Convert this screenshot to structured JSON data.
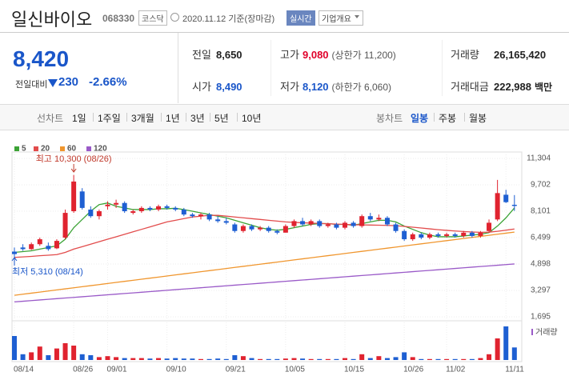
{
  "header": {
    "name": "일신바이오",
    "code": "068330",
    "market": "코스닥",
    "date": "2020.11.12 기준(장마감)",
    "realtime": "실시간",
    "overview": "기업개요"
  },
  "price": {
    "current": "8,420",
    "change_label": "전일대비",
    "change": "230",
    "change_rate": "-2.66%"
  },
  "summary": [
    {
      "label": "전일",
      "value": "8,650"
    },
    {
      "label": "고가",
      "value": "9,080",
      "note": "(상한가 11,200)",
      "color": "#e0002a"
    },
    {
      "label": "거래량",
      "value": "26,165,420"
    },
    {
      "label": "시가",
      "value": "8,490",
      "color": "#1a56c9"
    },
    {
      "label": "저가",
      "value": "8,120",
      "note": "(하한가 6,060)",
      "color": "#1a56c9"
    },
    {
      "label": "거래대금",
      "value": "222,988",
      "unit": "백만"
    }
  ],
  "toolbar": {
    "line_label": "선차트",
    "line_periods": [
      "1일",
      "1주일",
      "3개월",
      "1년",
      "3년",
      "5년",
      "10년"
    ],
    "candle_label": "봉차트",
    "candle_periods": [
      "일봉",
      "주봉",
      "월봉"
    ]
  },
  "chart_data": {
    "type": "candlestick",
    "up_color": "#e0232f",
    "down_color": "#1e5fd2",
    "categories": [
      "08/14",
      null,
      null,
      null,
      null,
      null,
      null,
      "08/26",
      null,
      null,
      null,
      "09/01",
      null,
      null,
      null,
      null,
      null,
      null,
      "09/10",
      null,
      null,
      null,
      null,
      null,
      null,
      "09/21",
      null,
      null,
      null,
      null,
      null,
      null,
      "10/05",
      null,
      null,
      null,
      null,
      null,
      null,
      "10/15",
      null,
      null,
      null,
      null,
      null,
      null,
      "10/26",
      null,
      null,
      null,
      null,
      "11/02",
      null,
      null,
      null,
      null,
      null,
      null,
      "11/11",
      null
    ],
    "open": [
      5650,
      5900,
      5800,
      6100,
      6000,
      5850,
      6500,
      8100,
      9300,
      8200,
      7800,
      8400,
      8500,
      8600,
      8000,
      8100,
      8300,
      8200,
      8400,
      8300,
      8200,
      7900,
      7800,
      7900,
      7600,
      7500,
      7300,
      6900,
      7200,
      7000,
      7100,
      6900,
      6800,
      7200,
      7500,
      7300,
      7500,
      7200,
      7300,
      7100,
      7400,
      7200,
      7800,
      7600,
      7700,
      7300,
      6900,
      6400,
      6700,
      6500,
      6700,
      6600,
      6700,
      6600,
      6800,
      6600,
      6900,
      7600,
      9100,
      8490
    ],
    "high": [
      5900,
      6100,
      6200,
      6500,
      6200,
      6400,
      8200,
      10300,
      9500,
      8400,
      8200,
      8700,
      8800,
      8700,
      8200,
      8400,
      8400,
      8500,
      8500,
      8400,
      8300,
      8000,
      8000,
      8000,
      7800,
      7700,
      7400,
      7300,
      7300,
      7200,
      7200,
      7000,
      7300,
      7600,
      7700,
      7600,
      7600,
      7400,
      7400,
      7500,
      7500,
      7900,
      8000,
      7900,
      7800,
      7400,
      7000,
      6800,
      6800,
      6800,
      6800,
      6800,
      6800,
      6900,
      6900,
      6900,
      7600,
      10000,
      9400,
      9080
    ],
    "low": [
      5310,
      5700,
      5750,
      6000,
      5700,
      5800,
      6400,
      8000,
      8200,
      7700,
      7600,
      8200,
      8300,
      8000,
      7900,
      8000,
      8100,
      8100,
      8200,
      8100,
      7800,
      7700,
      7600,
      7500,
      7400,
      7300,
      6800,
      6800,
      6900,
      6900,
      6800,
      6700,
      6800,
      7100,
      7200,
      7200,
      7100,
      7100,
      7000,
      7000,
      7100,
      7100,
      7500,
      7500,
      7200,
      6800,
      6300,
      6300,
      6400,
      6400,
      6500,
      6500,
      6500,
      6500,
      6500,
      6500,
      6800,
      7500,
      8600,
      8120
    ],
    "close": [
      5500,
      5800,
      6100,
      6400,
      5800,
      6300,
      8000,
      9900,
      8300,
      7800,
      8100,
      8500,
      8600,
      8100,
      8100,
      8300,
      8200,
      8400,
      8300,
      8200,
      7900,
      7800,
      7900,
      7600,
      7500,
      7400,
      6900,
      7200,
      7000,
      7100,
      6900,
      6800,
      7200,
      7500,
      7300,
      7500,
      7200,
      7300,
      7100,
      7400,
      7200,
      7800,
      7600,
      7700,
      7300,
      6900,
      6400,
      6700,
      6500,
      6700,
      6600,
      6700,
      6600,
      6800,
      6600,
      6800,
      7400,
      9200,
      8650,
      8420
    ],
    "series": [
      {
        "name": "5",
        "color": "#3ca336",
        "values": [
          5600,
          5650,
          5700,
          5800,
          5900,
          6000,
          6400,
          7100,
          7600,
          8100,
          8500,
          8600,
          8400,
          8300,
          8200,
          8200,
          8200,
          8250,
          8250,
          8280,
          8200,
          8100,
          8000,
          7900,
          7800,
          7700,
          7550,
          7400,
          7250,
          7100,
          7000,
          6950,
          7000,
          7100,
          7200,
          7300,
          7350,
          7350,
          7300,
          7300,
          7250,
          7350,
          7450,
          7550,
          7550,
          7450,
          7200,
          7000,
          6800,
          6650,
          6550,
          6550,
          6550,
          6600,
          6650,
          6700,
          6800,
          7200,
          7700,
          8300
        ]
      },
      {
        "name": "20",
        "color": "#e24c4c",
        "values": [
          5300,
          5330,
          5360,
          5400,
          5430,
          5470,
          5600,
          5800,
          5950,
          6100,
          6250,
          6400,
          6550,
          6700,
          6850,
          7000,
          7150,
          7300,
          7450,
          7550,
          7650,
          7750,
          7800,
          7850,
          7850,
          7800,
          7750,
          7700,
          7650,
          7600,
          7550,
          7500,
          7450,
          7420,
          7400,
          7380,
          7360,
          7340,
          7320,
          7300,
          7280,
          7270,
          7260,
          7250,
          7240,
          7220,
          7180,
          7130,
          7080,
          7030,
          6980,
          6940,
          6900,
          6870,
          6840,
          6820,
          6830,
          6880,
          6950,
          7020
        ]
      },
      {
        "name": "60",
        "color": "#f0962e",
        "values": [
          3000,
          3065,
          3130,
          3195,
          3260,
          3325,
          3390,
          3455,
          3520,
          3585,
          3650,
          3715,
          3780,
          3845,
          3910,
          3975,
          4040,
          4105,
          4170,
          4235,
          4300,
          4365,
          4430,
          4495,
          4560,
          4625,
          4690,
          4755,
          4820,
          4885,
          4950,
          5015,
          5080,
          5145,
          5210,
          5275,
          5340,
          5405,
          5470,
          5535,
          5600,
          5665,
          5730,
          5795,
          5860,
          5925,
          5990,
          6055,
          6120,
          6185,
          6250,
          6315,
          6380,
          6445,
          6510,
          6575,
          6640,
          6705,
          6770,
          6835
        ]
      },
      {
        "name": "120",
        "color": "#9a5ac8",
        "values": [
          2600,
          2639,
          2678,
          2717,
          2756,
          2795,
          2834,
          2873,
          2912,
          2951,
          2990,
          3029,
          3068,
          3107,
          3146,
          3185,
          3224,
          3263,
          3302,
          3341,
          3380,
          3419,
          3458,
          3497,
          3536,
          3575,
          3614,
          3653,
          3692,
          3731,
          3770,
          3809,
          3848,
          3887,
          3926,
          3965,
          4004,
          4043,
          4082,
          4121,
          4160,
          4199,
          4238,
          4277,
          4316,
          4355,
          4394,
          4433,
          4472,
          4511,
          4550,
          4589,
          4628,
          4667,
          4706,
          4745,
          4784,
          4823,
          4862,
          4901
        ]
      }
    ],
    "volume": {
      "name": "거래량",
      "values": [
        50000000,
        12000000,
        16000000,
        28000000,
        10000000,
        24000000,
        35000000,
        30000000,
        12000000,
        10000000,
        6000000,
        8000000,
        6000000,
        4000000,
        4000000,
        4000000,
        3000000,
        4000000,
        3000000,
        4000000,
        3000000,
        3000000,
        2000000,
        2000000,
        3000000,
        2000000,
        10000000,
        8000000,
        4000000,
        2000000,
        2000000,
        2000000,
        3000000,
        4000000,
        3000000,
        2000000,
        2000000,
        2000000,
        2000000,
        4000000,
        2000000,
        12000000,
        4000000,
        8000000,
        4000000,
        6000000,
        16000000,
        6000000,
        2000000,
        2000000,
        2000000,
        2000000,
        2000000,
        2000000,
        2000000,
        4000000,
        12000000,
        45000000,
        70000000,
        26165420
      ]
    },
    "ylim": [
      1695,
      11304
    ],
    "yticks": [
      {
        "value": 11304,
        "label": "11,304"
      },
      {
        "value": 9702,
        "label": "9,702"
      },
      {
        "value": 8101,
        "label": "8,101"
      },
      {
        "value": 6499,
        "label": "6,499"
      },
      {
        "value": 4898,
        "label": "4,898"
      },
      {
        "value": 3297,
        "label": "3,297"
      },
      {
        "value": 1695,
        "label": "1,695"
      }
    ],
    "annotations": {
      "high": "최고 10,300 (08/26)",
      "low": "최저 5,310 (08/14)"
    }
  }
}
